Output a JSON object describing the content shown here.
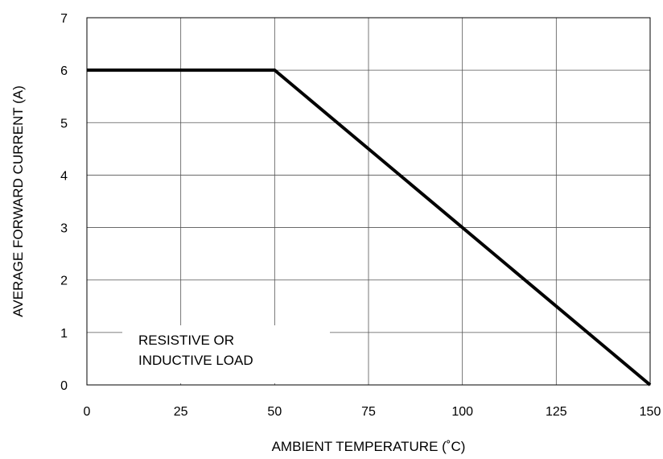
{
  "chart_data": {
    "type": "line",
    "title": "",
    "xlabel": "AMBIENT TEMPERATURE (˚C)",
    "ylabel": "AVERAGE FORWARD CURRENT (A)",
    "xlim": [
      0,
      150
    ],
    "ylim": [
      0,
      7
    ],
    "xticks": [
      0,
      25,
      50,
      75,
      100,
      125,
      150
    ],
    "yticks": [
      0,
      1,
      2,
      3,
      4,
      5,
      6,
      7
    ],
    "xtick_labels": [
      "0",
      "25",
      "50",
      "75",
      "100",
      "125",
      "150"
    ],
    "ytick_labels": [
      "0",
      "1",
      "2",
      "3",
      "4",
      "5",
      "6",
      "7"
    ],
    "grid": true,
    "legend": "none",
    "series": [
      {
        "x": [
          0,
          50,
          150
        ],
        "y": [
          6,
          6,
          0
        ],
        "color": "#000000"
      }
    ],
    "annotation": {
      "line1": "RESISTIVE OR",
      "line2": "INDUCTIVE LOAD"
    }
  }
}
